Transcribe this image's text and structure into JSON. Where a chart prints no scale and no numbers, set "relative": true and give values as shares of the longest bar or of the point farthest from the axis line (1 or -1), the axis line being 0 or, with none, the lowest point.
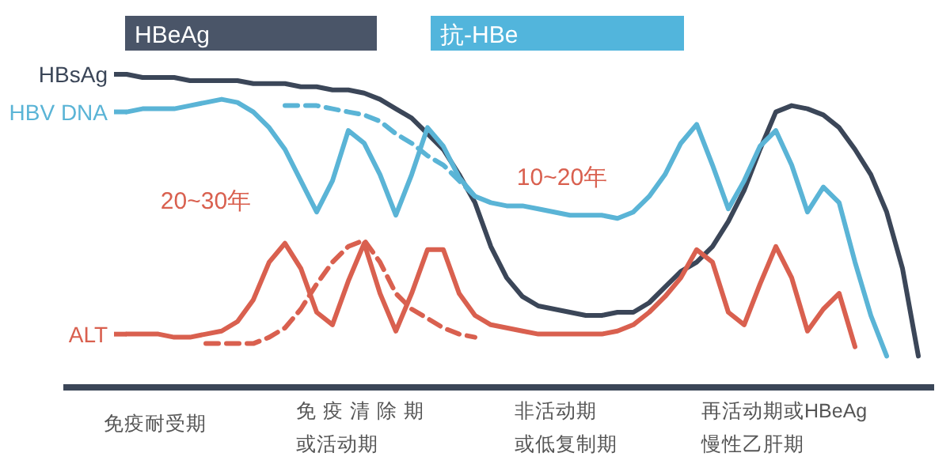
{
  "chart_data": {
    "type": "line",
    "relative": true,
    "grid": false,
    "legend": "left",
    "categories": [
      null,
      null,
      null,
      null,
      null,
      null,
      null,
      null,
      null,
      null,
      null,
      null,
      null,
      null,
      null,
      null,
      null,
      null,
      null,
      null,
      null,
      null,
      null,
      null,
      null,
      null,
      null,
      null,
      null,
      null,
      null,
      null,
      null,
      null,
      null,
      null,
      null,
      null,
      null,
      null,
      null,
      null,
      null,
      null,
      null,
      null,
      null,
      null,
      null,
      null,
      null,
      null,
      null,
      null,
      null
    ],
    "series": [
      {
        "name": "HBsAg",
        "color": "#3b4658",
        "values": [
          null,
          null,
          null,
          null,
          1.0,
          0.99,
          0.99,
          0.99,
          0.98,
          0.98,
          0.98,
          0.98,
          0.97,
          0.97,
          0.97,
          0.96,
          0.96,
          0.95,
          0.95,
          0.94,
          0.92,
          0.89,
          0.86,
          0.81,
          0.76,
          0.68,
          0.59,
          0.45,
          0.35,
          0.29,
          0.26,
          0.25,
          0.24,
          0.23,
          0.23,
          0.24,
          0.24,
          0.27,
          0.32,
          0.37,
          0.4,
          0.45,
          0.53,
          0.63,
          0.76,
          0.88,
          0.9,
          0.89,
          0.87,
          0.83,
          0.76,
          0.68,
          0.56,
          0.38,
          0.1
        ]
      },
      {
        "name": "HBV DNA",
        "color": "#5ab4d6",
        "values": [
          null,
          null,
          null,
          null,
          0.88,
          0.89,
          0.89,
          0.89,
          0.9,
          0.91,
          0.92,
          0.91,
          0.88,
          0.83,
          0.76,
          0.66,
          0.56,
          0.66,
          0.82,
          0.78,
          0.68,
          0.55,
          0.68,
          0.83,
          0.77,
          0.67,
          0.61,
          0.59,
          0.58,
          0.58,
          0.57,
          0.56,
          0.55,
          0.55,
          0.55,
          0.54,
          0.56,
          0.61,
          0.68,
          0.78,
          0.84,
          0.71,
          0.57,
          0.66,
          0.77,
          0.82,
          0.71,
          0.56,
          0.64,
          0.59,
          0.4,
          0.23,
          0.1,
          null,
          null
        ]
      },
      {
        "name": "ALT",
        "color": "#d9604f",
        "values": [
          null,
          null,
          null,
          null,
          0.17,
          0.17,
          0.17,
          0.16,
          0.16,
          0.17,
          0.18,
          0.21,
          0.28,
          0.4,
          0.46,
          0.38,
          0.24,
          0.2,
          0.34,
          0.46,
          0.3,
          0.18,
          0.3,
          0.44,
          0.44,
          0.3,
          0.23,
          0.2,
          0.19,
          0.18,
          0.17,
          0.17,
          0.17,
          0.17,
          0.17,
          0.18,
          0.2,
          0.24,
          0.29,
          0.35,
          0.44,
          0.4,
          0.24,
          0.2,
          0.33,
          0.45,
          0.35,
          0.18,
          0.25,
          0.3,
          0.13,
          null,
          null,
          null,
          null
        ]
      },
      {
        "color": "#5ab4d6",
        "line_style": "dashed",
        "values": [
          null,
          null,
          null,
          null,
          null,
          null,
          null,
          null,
          null,
          null,
          null,
          null,
          null,
          null,
          0.9,
          0.9,
          0.9,
          0.89,
          0.88,
          0.87,
          0.85,
          0.81,
          0.78,
          0.74,
          0.71,
          0.66,
          0.61,
          null,
          null,
          null,
          null,
          null,
          null,
          null,
          null,
          null,
          null,
          null,
          null,
          null,
          null,
          null,
          null,
          null,
          null,
          null,
          null,
          null,
          null,
          null,
          null,
          null,
          null,
          null,
          null
        ]
      },
      {
        "color": "#d9604f",
        "line_style": "dashed",
        "values": [
          null,
          null,
          null,
          null,
          null,
          null,
          null,
          null,
          null,
          0.14,
          0.14,
          0.14,
          0.14,
          0.16,
          0.19,
          0.25,
          0.33,
          0.4,
          0.45,
          0.47,
          0.4,
          0.3,
          0.25,
          0.22,
          0.19,
          0.17,
          0.16,
          null,
          null,
          null,
          null,
          null,
          null,
          null,
          null,
          null,
          null,
          null,
          null,
          null,
          null,
          null,
          null,
          null,
          null,
          null,
          null,
          null,
          null,
          null,
          null,
          null,
          null,
          null,
          null
        ]
      }
    ],
    "annotations": [
      "HBeAg",
      "抗-HBe",
      "20~30年",
      "10~20年",
      "免疫耐受期",
      "免疫清除期",
      "或活动期",
      "非活动期",
      "或低复制期",
      "再活动期或HBeAg",
      "慢性乙肝期"
    ]
  }
}
